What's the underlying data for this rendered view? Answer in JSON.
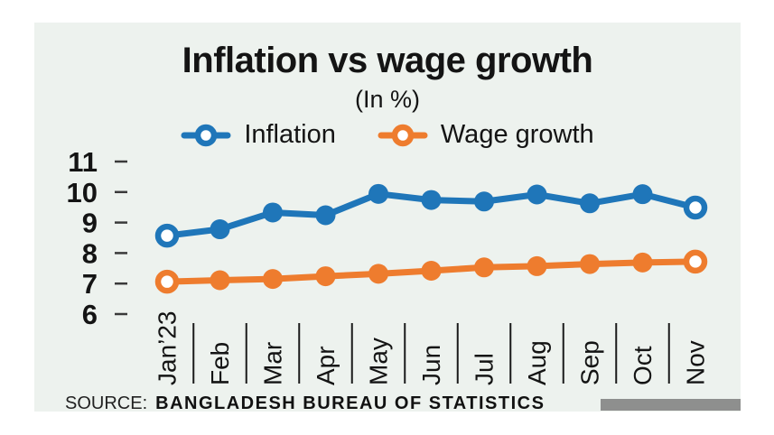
{
  "chart_data": {
    "type": "line",
    "title": "Inflation vs wage growth",
    "subtitle": "(In %)",
    "categories": [
      "Jan’23",
      "Feb",
      "Mar",
      "Apr",
      "May",
      "Jun",
      "Jul",
      "Aug",
      "Sep",
      "Oct",
      "Nov"
    ],
    "series": [
      {
        "name": "Inflation",
        "color": "#1f76b9",
        "values": [
          8.57,
          8.78,
          9.33,
          9.24,
          9.94,
          9.74,
          9.69,
          9.92,
          9.63,
          9.93,
          9.49
        ]
      },
      {
        "name": "Wage growth",
        "color": "#ee7c2e",
        "values": [
          7.06,
          7.11,
          7.15,
          7.24,
          7.32,
          7.42,
          7.53,
          7.57,
          7.64,
          7.69,
          7.72
        ]
      }
    ],
    "y_ticks": [
      11,
      10,
      9,
      8,
      7,
      6
    ],
    "ylim": [
      6,
      11
    ],
    "xlabel": "",
    "ylabel": "",
    "grid": false,
    "legend_position": "top-center",
    "marker_note": "solid round markers; first and last point of each series drawn as open white-filled circles"
  },
  "source": {
    "label": "SOURCE:",
    "name": "BANGLADESH BUREAU OF STATISTICS"
  },
  "colors": {
    "panel_background": "#edf2ee",
    "inflation": "#1f76b9",
    "wage_growth": "#ee7c2e",
    "axis_text": "#141414",
    "source_bar": "#8e8f8e"
  }
}
